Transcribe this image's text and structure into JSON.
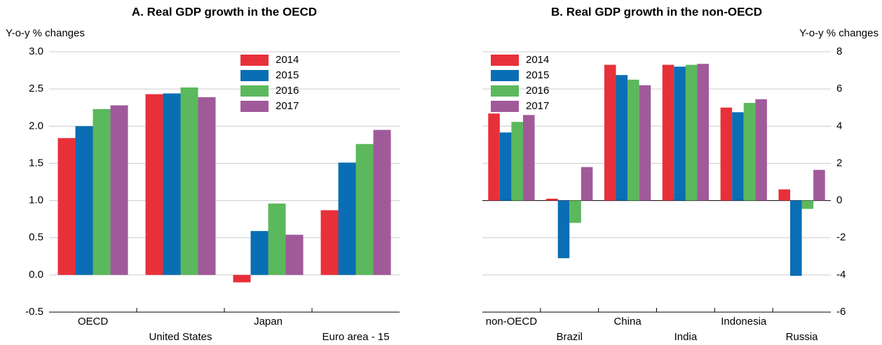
{
  "chart_data": [
    {
      "type": "bar",
      "title": "A. Real GDP growth in the OECD",
      "y_label": "Y-o-y % changes",
      "categories": [
        "OECD",
        "United States",
        "Japan",
        "Euro area - 15"
      ],
      "series": [
        {
          "name": "2014",
          "color": "#e8303a",
          "values": [
            1.84,
            2.43,
            -0.1,
            0.87
          ]
        },
        {
          "name": "2015",
          "color": "#0a6eb4",
          "values": [
            2.0,
            2.44,
            0.59,
            1.51
          ]
        },
        {
          "name": "2016",
          "color": "#5cb85c",
          "values": [
            2.23,
            2.52,
            0.96,
            1.76
          ]
        },
        {
          "name": "2017",
          "color": "#a05a9a",
          "values": [
            2.28,
            2.39,
            0.54,
            1.95
          ]
        }
      ],
      "ylim": [
        -0.5,
        3.0
      ],
      "yticks": [
        {
          "value": -0.5,
          "label": "-0.5"
        },
        {
          "value": 0,
          "label": "0.0"
        },
        {
          "value": 0.5,
          "label": "0.5"
        },
        {
          "value": 1,
          "label": "1.0"
        },
        {
          "value": 1.5,
          "label": "1.5"
        },
        {
          "value": 2,
          "label": "2.0"
        },
        {
          "value": 2.5,
          "label": "2.5"
        },
        {
          "value": 3,
          "label": "3.0"
        }
      ],
      "y_axis_side": "left",
      "grid": true,
      "legend": "top-center"
    },
    {
      "type": "bar",
      "title": "B. Real GDP growth in the non-OECD",
      "y_label": "Y-o-y % changes",
      "categories": [
        "non-OECD",
        "Brazil",
        "China",
        "India",
        "Indonesia",
        "Russia"
      ],
      "series": [
        {
          "name": "2014",
          "color": "#e8303a",
          "values": [
            4.68,
            0.1,
            7.3,
            7.3,
            5.0,
            0.6
          ]
        },
        {
          "name": "2015",
          "color": "#0a6eb4",
          "values": [
            3.66,
            -3.1,
            6.75,
            7.2,
            4.75,
            -4.05
          ]
        },
        {
          "name": "2016",
          "color": "#5cb85c",
          "values": [
            4.23,
            -1.2,
            6.5,
            7.3,
            5.25,
            -0.45
          ]
        },
        {
          "name": "2017",
          "color": "#a05a9a",
          "values": [
            4.6,
            1.8,
            6.2,
            7.35,
            5.45,
            1.65
          ]
        }
      ],
      "ylim": [
        -6,
        8
      ],
      "yticks": [
        -6,
        -4,
        -2,
        0,
        2,
        4,
        6,
        8
      ],
      "y_axis_side": "right",
      "grid": true,
      "legend": "top-left"
    }
  ]
}
